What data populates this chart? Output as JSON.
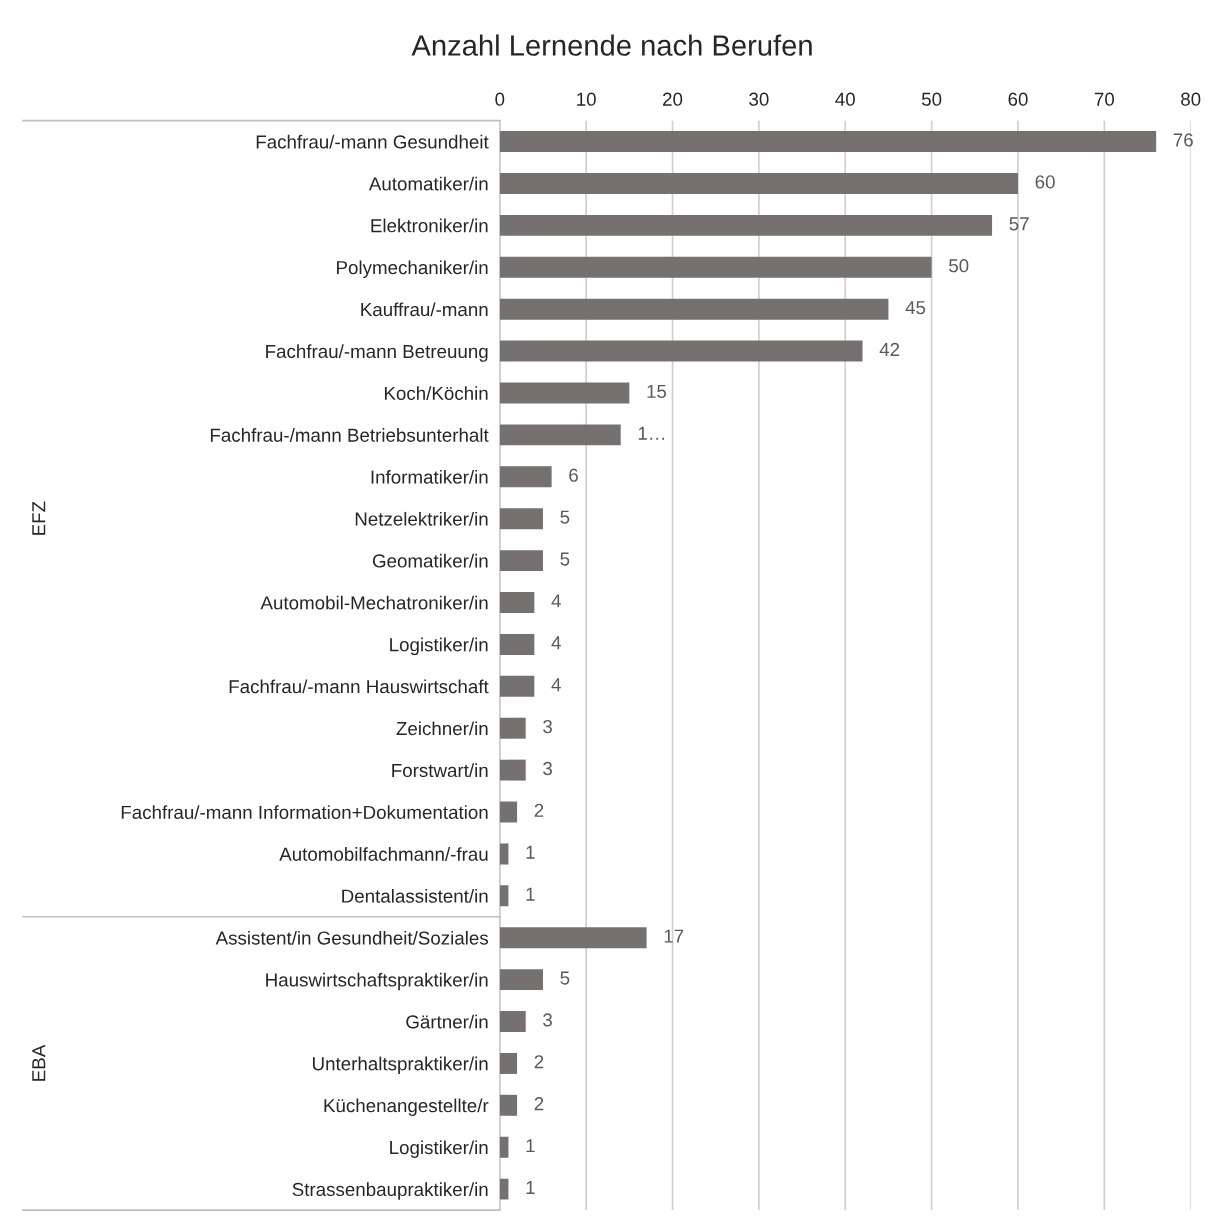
{
  "chart_data": {
    "type": "bar",
    "orientation": "horizontal",
    "title": "Anzahl Lernende nach Berufen",
    "categories": [
      "Fachfrau/-mann Gesundheit",
      "Automatiker/in",
      "Elektroniker/in",
      "Polymechaniker/in",
      "Kauffrau/-mann",
      "Fachfrau/-mann Betreuung",
      "Koch/Köchin",
      "Fachfrau-/mann Betriebsunterhalt",
      "Informatiker/in",
      "Netzelektriker/in",
      "Geomatiker/in",
      "Automobil-Mechatroniker/in",
      "Logistiker/in",
      "Fachfrau/-mann Hauswirtschaft",
      "Zeichner/in",
      "Forstwart/in",
      "Fachfrau/-mann Information+Dokumentation",
      "Automobilfachmann/-frau",
      "Dentalassistent/in",
      "Assistent/in Gesundheit/Soziales",
      "Hauswirtschaftspraktiker/in",
      "Gärtner/in",
      "Unterhaltspraktiker/in",
      "Küchenangestellte/r",
      "Logistiker/in",
      "Strassenbaupraktiker/in"
    ],
    "values": [
      76,
      60,
      57,
      50,
      45,
      42,
      15,
      14,
      6,
      5,
      5,
      4,
      4,
      4,
      3,
      3,
      2,
      1,
      1,
      17,
      5,
      3,
      2,
      2,
      1,
      1
    ],
    "value_labels": [
      "76",
      "60",
      "57",
      "50",
      "45",
      "42",
      "15",
      "1…",
      "6",
      "5",
      "5",
      "4",
      "4",
      "4",
      "3",
      "3",
      "2",
      "1",
      "1",
      "17",
      "5",
      "3",
      "2",
      "2",
      "1",
      "1"
    ],
    "color": "#767171",
    "xlim": [
      0,
      80
    ],
    "xticks": [
      0,
      10,
      20,
      30,
      40,
      50,
      60,
      70,
      80
    ],
    "grid": "x",
    "annotations": [
      "EFZ",
      "EBA"
    ]
  }
}
